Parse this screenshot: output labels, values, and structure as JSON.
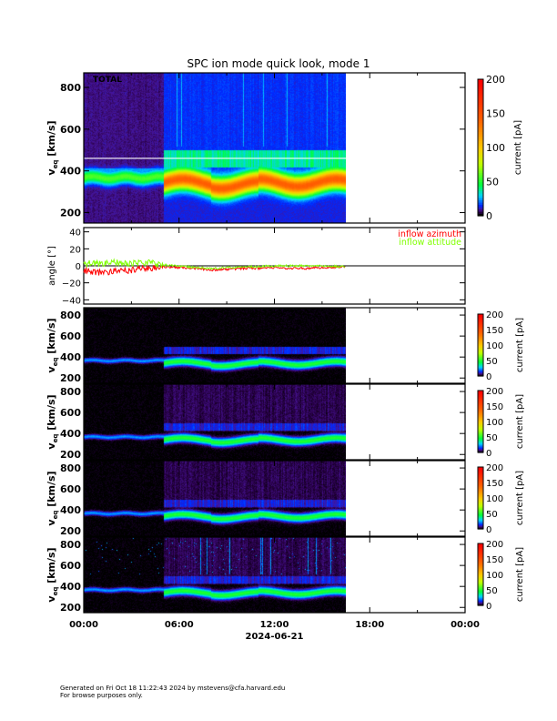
{
  "chart_data": [
    {
      "type": "heatmap",
      "title": "SPC ion mode quick look, mode 1",
      "label": "TOTAL",
      "ylabel": "v_eq [km/s]",
      "ylabel_main": "v",
      "ylabel_sub": "eq",
      "ylabel_unit": "[km/s]",
      "ylim": [
        150,
        870
      ],
      "yticks": [
        200,
        400,
        600,
        800
      ],
      "colorbar": {
        "label": "current [pA]",
        "range": [
          0,
          200
        ],
        "ticks": [
          0,
          50,
          100,
          150,
          200
        ]
      },
      "marker_line_v": 460,
      "style": "blue-background"
    },
    {
      "type": "line",
      "ylabel": "angle [°]",
      "ylim": [
        -45,
        45
      ],
      "yticks": [
        -40,
        -20,
        0,
        20,
        40
      ],
      "zero_line": true,
      "x_hours": [
        0,
        1,
        2,
        3,
        4,
        5,
        6,
        7,
        8,
        9,
        10,
        11,
        12,
        13,
        14,
        15,
        16.5
      ],
      "series": [
        {
          "name": "inflow azimuth",
          "color": "#ff0000",
          "values": [
            -5,
            -8,
            -6,
            -5,
            -3,
            -1,
            -2,
            -3,
            -5,
            -4,
            -3,
            -3,
            -2,
            -3,
            -3,
            -2,
            -1
          ]
        },
        {
          "name": "inflow attitude",
          "color": "#80ff00",
          "values": [
            3,
            2,
            4,
            3,
            4,
            1,
            0,
            -2,
            -3,
            -2,
            -1,
            -1,
            0,
            0,
            0,
            0,
            -1
          ]
        }
      ],
      "legend": "top-right"
    },
    {
      "type": "heatmap",
      "ylabel_main": "v",
      "ylabel_sub": "eq",
      "ylabel_unit": "[km/s]",
      "ylim": [
        150,
        870
      ],
      "yticks": [
        200,
        400,
        600,
        800
      ],
      "colorbar": {
        "label": "current [pA]",
        "range": [
          0,
          200
        ],
        "ticks": [
          0,
          50,
          100,
          150,
          200
        ]
      },
      "style": "black-background"
    },
    {
      "type": "heatmap",
      "ylabel_main": "v",
      "ylabel_sub": "eq",
      "ylabel_unit": "[km/s]",
      "ylim": [
        150,
        870
      ],
      "yticks": [
        200,
        400,
        600,
        800
      ],
      "colorbar": {
        "label": "current [pA]",
        "range": [
          0,
          200
        ],
        "ticks": [
          0,
          50,
          100,
          150,
          200
        ]
      },
      "style": "black-background-haze"
    },
    {
      "type": "heatmap",
      "ylabel_main": "v",
      "ylabel_sub": "eq",
      "ylabel_unit": "[km/s]",
      "ylim": [
        150,
        870
      ],
      "yticks": [
        200,
        400,
        600,
        800
      ],
      "colorbar": {
        "label": "current [pA]",
        "range": [
          0,
          200
        ],
        "ticks": [
          0,
          50,
          100,
          150,
          200
        ]
      },
      "style": "black-background-haze"
    },
    {
      "type": "heatmap",
      "ylabel_main": "v",
      "ylabel_sub": "eq",
      "ylabel_unit": "[km/s]",
      "ylim": [
        150,
        870
      ],
      "yticks": [
        200,
        400,
        600,
        800
      ],
      "colorbar": {
        "label": "current [pA]",
        "range": [
          0,
          200
        ],
        "ticks": [
          0,
          50,
          100,
          150,
          200
        ]
      },
      "style": "black-background-streaks"
    }
  ],
  "xaxis": {
    "range_hours": [
      0,
      24
    ],
    "data_end_hours": 16.5,
    "tick_labels": [
      "00:00",
      "06:00",
      "12:00",
      "18:00",
      "00:00"
    ],
    "date": "2024-06-21"
  },
  "colors": {
    "bg": "#ffffff",
    "axis": "#000000"
  },
  "footer": {
    "line1": "Generated on Fri Oct 18 11:22:43 2024 by mstevens@cfa.harvard.edu",
    "line2": "For browse purposes only."
  }
}
